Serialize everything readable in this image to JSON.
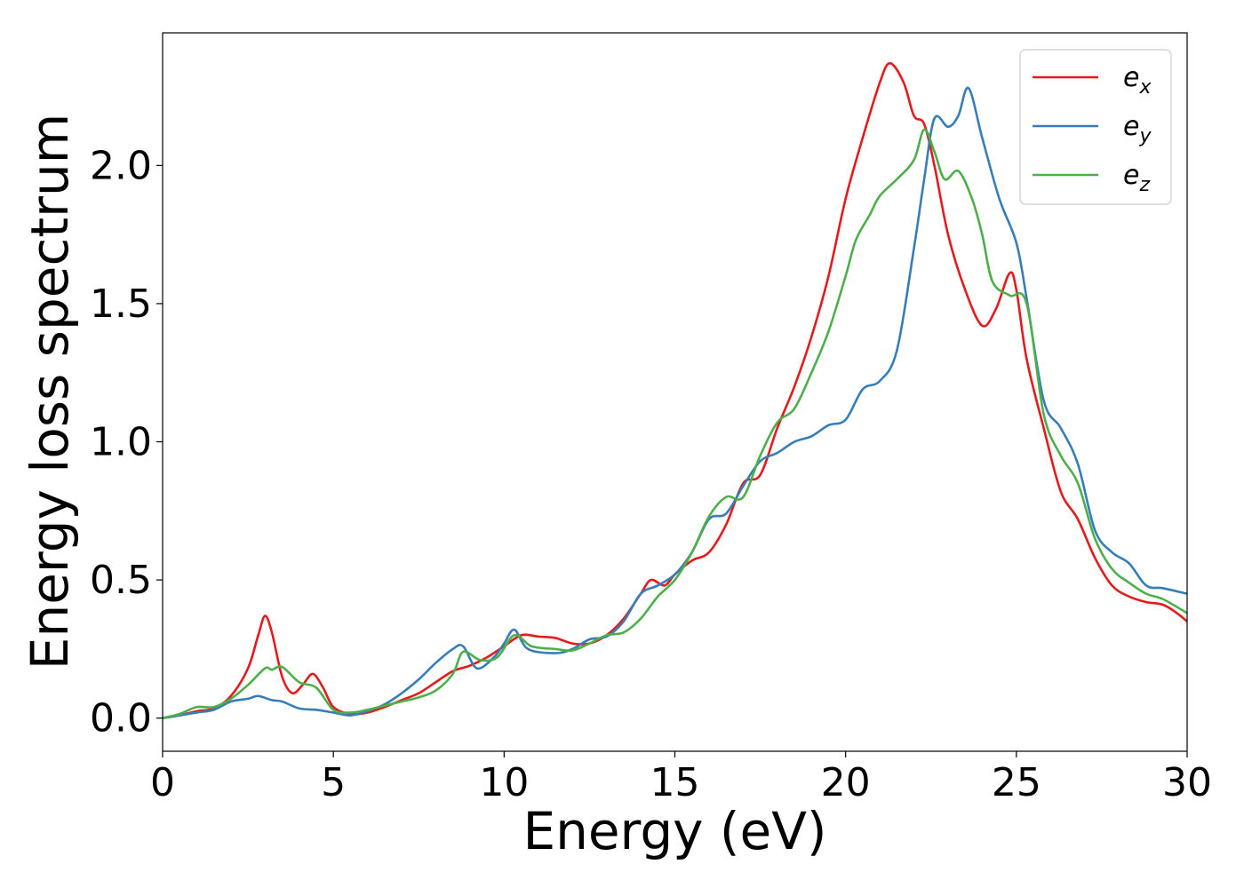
{
  "chart_data": {
    "type": "line",
    "xlabel": "Energy (eV)",
    "ylabel": "Energy loss spectrum",
    "xlim": [
      0,
      30
    ],
    "ylim": [
      -0.12,
      2.48
    ],
    "xticks": [
      0,
      5,
      10,
      15,
      20,
      25,
      30
    ],
    "xtick_labels": [
      "0",
      "5",
      "10",
      "15",
      "20",
      "25",
      "30"
    ],
    "yticks": [
      0.0,
      0.5,
      1.0,
      1.5,
      2.0
    ],
    "ytick_labels": [
      "0.0",
      "0.5",
      "1.0",
      "1.5",
      "2.0"
    ],
    "grid": false,
    "legend_position": "top-right",
    "series": [
      {
        "name": "e_x",
        "label_base": "e",
        "label_sub": "x",
        "color": "#e41a1c",
        "points": [
          [
            0,
            0
          ],
          [
            0.5,
            0.01
          ],
          [
            1,
            0.025
          ],
          [
            1.5,
            0.035
          ],
          [
            2,
            0.08
          ],
          [
            2.5,
            0.18
          ],
          [
            2.8,
            0.3
          ],
          [
            3,
            0.37
          ],
          [
            3.2,
            0.31
          ],
          [
            3.5,
            0.15
          ],
          [
            3.8,
            0.09
          ],
          [
            4.1,
            0.12
          ],
          [
            4.4,
            0.16
          ],
          [
            4.7,
            0.11
          ],
          [
            5,
            0.04
          ],
          [
            5.5,
            0.015
          ],
          [
            6,
            0.02
          ],
          [
            6.5,
            0.04
          ],
          [
            7,
            0.065
          ],
          [
            7.5,
            0.09
          ],
          [
            8,
            0.13
          ],
          [
            8.5,
            0.17
          ],
          [
            9,
            0.19
          ],
          [
            9.5,
            0.22
          ],
          [
            10,
            0.26
          ],
          [
            10.5,
            0.3
          ],
          [
            11,
            0.295
          ],
          [
            11.5,
            0.29
          ],
          [
            12,
            0.27
          ],
          [
            12.5,
            0.27
          ],
          [
            13,
            0.3
          ],
          [
            13.5,
            0.36
          ],
          [
            14,
            0.45
          ],
          [
            14.3,
            0.5
          ],
          [
            14.7,
            0.48
          ],
          [
            15,
            0.52
          ],
          [
            15.5,
            0.57
          ],
          [
            16,
            0.6
          ],
          [
            16.5,
            0.7
          ],
          [
            17,
            0.85
          ],
          [
            17.5,
            0.88
          ],
          [
            18,
            1.05
          ],
          [
            18.5,
            1.2
          ],
          [
            19,
            1.38
          ],
          [
            19.5,
            1.6
          ],
          [
            20,
            1.88
          ],
          [
            20.5,
            2.1
          ],
          [
            21,
            2.3
          ],
          [
            21.3,
            2.37
          ],
          [
            21.7,
            2.3
          ],
          [
            22,
            2.18
          ],
          [
            22.3,
            2.15
          ],
          [
            22.6,
            2.0
          ],
          [
            23,
            1.75
          ],
          [
            23.5,
            1.55
          ],
          [
            24,
            1.42
          ],
          [
            24.4,
            1.48
          ],
          [
            24.8,
            1.61
          ],
          [
            25,
            1.55
          ],
          [
            25.3,
            1.3
          ],
          [
            25.8,
            1.05
          ],
          [
            26.3,
            0.82
          ],
          [
            26.8,
            0.72
          ],
          [
            27.3,
            0.58
          ],
          [
            27.8,
            0.48
          ],
          [
            28.3,
            0.44
          ],
          [
            28.8,
            0.42
          ],
          [
            29.3,
            0.41
          ],
          [
            29.7,
            0.38
          ],
          [
            30,
            0.35
          ]
        ]
      },
      {
        "name": "e_y",
        "label_base": "e",
        "label_sub": "y",
        "color": "#377eb8",
        "points": [
          [
            0,
            0
          ],
          [
            0.5,
            0.01
          ],
          [
            1,
            0.02
          ],
          [
            1.5,
            0.03
          ],
          [
            2,
            0.06
          ],
          [
            2.5,
            0.07
          ],
          [
            2.8,
            0.08
          ],
          [
            3.2,
            0.065
          ],
          [
            3.5,
            0.06
          ],
          [
            4,
            0.035
          ],
          [
            4.5,
            0.03
          ],
          [
            5,
            0.02
          ],
          [
            5.5,
            0.01
          ],
          [
            6,
            0.025
          ],
          [
            6.5,
            0.05
          ],
          [
            7,
            0.09
          ],
          [
            7.5,
            0.14
          ],
          [
            8,
            0.2
          ],
          [
            8.5,
            0.25
          ],
          [
            8.8,
            0.26
          ],
          [
            9.2,
            0.18
          ],
          [
            9.7,
            0.22
          ],
          [
            10,
            0.27
          ],
          [
            10.3,
            0.32
          ],
          [
            10.7,
            0.25
          ],
          [
            11.5,
            0.235
          ],
          [
            12,
            0.25
          ],
          [
            12.5,
            0.285
          ],
          [
            13,
            0.295
          ],
          [
            13.5,
            0.35
          ],
          [
            14,
            0.45
          ],
          [
            14.5,
            0.48
          ],
          [
            15,
            0.52
          ],
          [
            15.5,
            0.6
          ],
          [
            16,
            0.72
          ],
          [
            16.5,
            0.74
          ],
          [
            17,
            0.84
          ],
          [
            17.5,
            0.93
          ],
          [
            18,
            0.96
          ],
          [
            18.5,
            1.0
          ],
          [
            19,
            1.02
          ],
          [
            19.5,
            1.06
          ],
          [
            20,
            1.08
          ],
          [
            20.5,
            1.19
          ],
          [
            21,
            1.22
          ],
          [
            21.5,
            1.33
          ],
          [
            22,
            1.7
          ],
          [
            22.3,
            1.95
          ],
          [
            22.6,
            2.17
          ],
          [
            23,
            2.14
          ],
          [
            23.3,
            2.18
          ],
          [
            23.6,
            2.28
          ],
          [
            24,
            2.1
          ],
          [
            24.5,
            1.88
          ],
          [
            25,
            1.72
          ],
          [
            25.3,
            1.52
          ],
          [
            25.8,
            1.15
          ],
          [
            26.3,
            1.05
          ],
          [
            26.8,
            0.92
          ],
          [
            27.3,
            0.68
          ],
          [
            27.8,
            0.6
          ],
          [
            28.3,
            0.56
          ],
          [
            28.8,
            0.48
          ],
          [
            29.3,
            0.47
          ],
          [
            30,
            0.45
          ]
        ]
      },
      {
        "name": "e_z",
        "label_base": "e",
        "label_sub": "z",
        "color": "#4daf4a",
        "points": [
          [
            0,
            0
          ],
          [
            0.5,
            0.015
          ],
          [
            1,
            0.04
          ],
          [
            1.5,
            0.04
          ],
          [
            2,
            0.07
          ],
          [
            2.5,
            0.12
          ],
          [
            3,
            0.18
          ],
          [
            3.2,
            0.175
          ],
          [
            3.5,
            0.185
          ],
          [
            4,
            0.13
          ],
          [
            4.5,
            0.11
          ],
          [
            5,
            0.03
          ],
          [
            5.5,
            0.02
          ],
          [
            6,
            0.03
          ],
          [
            6.5,
            0.045
          ],
          [
            7,
            0.06
          ],
          [
            7.5,
            0.075
          ],
          [
            8,
            0.1
          ],
          [
            8.5,
            0.16
          ],
          [
            8.8,
            0.24
          ],
          [
            9.3,
            0.21
          ],
          [
            9.8,
            0.22
          ],
          [
            10.3,
            0.3
          ],
          [
            10.8,
            0.26
          ],
          [
            11.5,
            0.25
          ],
          [
            12,
            0.245
          ],
          [
            12.5,
            0.27
          ],
          [
            13,
            0.3
          ],
          [
            13.5,
            0.31
          ],
          [
            14,
            0.36
          ],
          [
            14.5,
            0.44
          ],
          [
            15,
            0.5
          ],
          [
            15.5,
            0.6
          ],
          [
            16,
            0.73
          ],
          [
            16.5,
            0.8
          ],
          [
            17,
            0.8
          ],
          [
            17.5,
            0.95
          ],
          [
            18,
            1.07
          ],
          [
            18.5,
            1.12
          ],
          [
            19,
            1.25
          ],
          [
            19.5,
            1.4
          ],
          [
            20,
            1.6
          ],
          [
            20.3,
            1.73
          ],
          [
            20.7,
            1.82
          ],
          [
            21,
            1.89
          ],
          [
            21.5,
            1.95
          ],
          [
            22,
            2.02
          ],
          [
            22.3,
            2.13
          ],
          [
            22.6,
            2.05
          ],
          [
            22.9,
            1.95
          ],
          [
            23.3,
            1.98
          ],
          [
            23.7,
            1.88
          ],
          [
            24,
            1.75
          ],
          [
            24.3,
            1.58
          ],
          [
            24.8,
            1.53
          ],
          [
            25.3,
            1.5
          ],
          [
            25.8,
            1.1
          ],
          [
            26.3,
            0.95
          ],
          [
            26.8,
            0.85
          ],
          [
            27.3,
            0.65
          ],
          [
            27.8,
            0.54
          ],
          [
            28.3,
            0.49
          ],
          [
            28.8,
            0.45
          ],
          [
            29.3,
            0.43
          ],
          [
            30,
            0.38
          ]
        ]
      }
    ]
  }
}
